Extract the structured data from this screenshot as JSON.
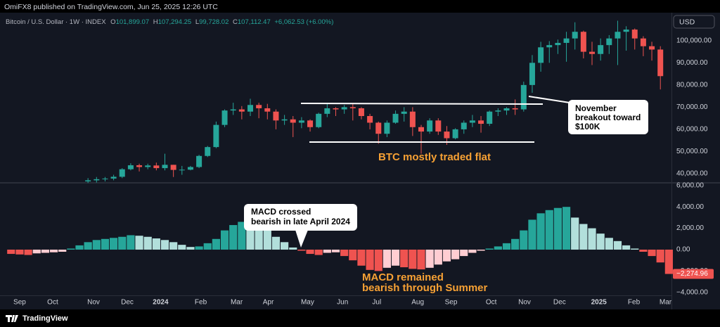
{
  "header": {
    "publisher": "OmiFX8 published on TradingView.com, Jun 25, 2025 12:26 UTC",
    "symbol": "Bitcoin / U.S. Dollar · 1W · INDEX",
    "ohlc": [
      {
        "key": "O",
        "value": "101,899.07"
      },
      {
        "key": "H",
        "value": "107,294.25"
      },
      {
        "key": "L",
        "value": "99,728.02"
      },
      {
        "key": "C",
        "value": "107,112.47"
      }
    ],
    "change": "+6,062.53 (+6.00%)",
    "currency": "USD"
  },
  "footer": "TradingView",
  "chart_data": [
    {
      "type": "candlestick",
      "up_color": "#26a69a",
      "down_color": "#ef5350",
      "xlim": [
        -1.3,
        77.3
      ],
      "ylim": [
        36500,
        112000
      ],
      "grid": false,
      "yticks": [
        {
          "value": 40000,
          "label": "40,000.00"
        },
        {
          "value": 50000,
          "label": "50,000.00"
        },
        {
          "value": 60000,
          "label": "60,000.00"
        },
        {
          "value": 70000,
          "label": "70,000.00"
        },
        {
          "value": 80000,
          "label": "80,000.00"
        },
        {
          "value": 90000,
          "label": "90,000.00"
        },
        {
          "value": 100000,
          "label": "100,000.00"
        }
      ],
      "open": [
        null,
        null,
        null,
        null,
        null,
        null,
        null,
        null,
        null,
        36500,
        37000,
        37500,
        37800,
        38600,
        42000,
        43800,
        43000,
        43700,
        42500,
        44000,
        41700,
        41800,
        43000,
        48000,
        52000,
        62000,
        68500,
        69000,
        68000,
        71000,
        69500,
        68000,
        64000,
        64500,
        63000,
        64000,
        61000,
        67000,
        69500,
        69000,
        70000,
        69500,
        66000,
        63000,
        58000,
        63000,
        67000,
        68000,
        61000,
        59000,
        64000,
        59000,
        56000,
        60000,
        63000,
        64000,
        62500,
        68000,
        68500,
        69500,
        69000,
        80000,
        90000,
        97000,
        98000,
        99000,
        101000,
        104000,
        95000,
        94000,
        98000,
        101000,
        104000,
        105000,
        101000,
        97500,
        96000,
        null
      ],
      "high": [
        null,
        null,
        null,
        null,
        null,
        null,
        null,
        null,
        null,
        38000,
        38500,
        38500,
        39500,
        42500,
        44700,
        44500,
        44500,
        45000,
        49000,
        44000,
        43500,
        43500,
        48500,
        52500,
        63500,
        69000,
        72000,
        70500,
        73800,
        72000,
        71500,
        69000,
        66500,
        66000,
        65500,
        64500,
        67500,
        71900,
        70000,
        71000,
        71500,
        70000,
        67000,
        63500,
        64000,
        68500,
        70000,
        70000,
        62000,
        65000,
        65000,
        61500,
        60500,
        64000,
        66500,
        66000,
        68500,
        69500,
        70000,
        73500,
        81500,
        93500,
        99500,
        99800,
        100500,
        104000,
        108300,
        104500,
        99500,
        101000,
        102500,
        109000,
        106500,
        105500,
        102000,
        99500,
        97500,
        null
      ],
      "low": [
        null,
        null,
        null,
        null,
        null,
        null,
        null,
        null,
        null,
        35800,
        36000,
        36500,
        37000,
        38000,
        41500,
        41000,
        42000,
        41500,
        41500,
        38500,
        39500,
        41500,
        42500,
        47500,
        51500,
        61000,
        66500,
        64500,
        66000,
        65000,
        64500,
        60000,
        62000,
        56500,
        60500,
        59000,
        60500,
        65500,
        66000,
        67000,
        64000,
        64500,
        60000,
        53500,
        56500,
        62500,
        63500,
        57000,
        49000,
        58000,
        57500,
        53000,
        55500,
        58000,
        61000,
        58500,
        61500,
        66000,
        66500,
        66500,
        68000,
        76500,
        86000,
        90000,
        94000,
        90500,
        96000,
        92000,
        89000,
        91000,
        94000,
        89000,
        95500,
        96000,
        93000,
        91000,
        78000,
        null
      ],
      "close": [
        null,
        null,
        null,
        null,
        null,
        null,
        null,
        null,
        null,
        37000,
        37500,
        37800,
        38600,
        42000,
        43800,
        43000,
        43700,
        42500,
        44000,
        41700,
        41800,
        43000,
        48000,
        52000,
        62000,
        68500,
        69000,
        68000,
        71000,
        69500,
        68000,
        64000,
        64500,
        63000,
        64000,
        61000,
        67000,
        69500,
        69000,
        70000,
        69500,
        66000,
        63000,
        58000,
        63000,
        67000,
        68000,
        61000,
        59000,
        64000,
        59000,
        56000,
        60000,
        63000,
        64000,
        62500,
        68000,
        68500,
        69500,
        69000,
        80000,
        90000,
        97000,
        98000,
        99000,
        101000,
        104000,
        95000,
        94000,
        98000,
        101000,
        104000,
        105000,
        101000,
        97500,
        96000,
        84000,
        null
      ]
    },
    {
      "type": "bar",
      "xlim": [
        -1.3,
        77.3
      ],
      "ylim": [
        -4280,
        6120
      ],
      "grid": false,
      "colors": {
        "rising_positive": "#26a69a",
        "falling_positive": "#b2dfdb",
        "falling_negative": "#ef5350",
        "rising_negative": "#ffcdd2"
      },
      "yticks": [
        {
          "value": 6000,
          "label": "6,000.00"
        },
        {
          "value": 4000,
          "label": "4,000.00"
        },
        {
          "value": 2000,
          "label": "2,000.00"
        },
        {
          "value": 0,
          "label": "0.00"
        },
        {
          "value": -2000,
          "label": "−2,000.00"
        },
        {
          "value": -4000,
          "label": "−4,000.00"
        }
      ],
      "last_value": {
        "value": -2274.96,
        "label": "−2,274.96"
      },
      "xticks": [
        {
          "value": 1.0,
          "label": "Sep"
        },
        {
          "value": 4.87,
          "label": "Oct"
        },
        {
          "value": 9.65,
          "label": "Nov"
        },
        {
          "value": 13.6,
          "label": "Dec"
        },
        {
          "value": 17.5,
          "label": "2024"
        },
        {
          "value": 22.2,
          "label": "Feb"
        },
        {
          "value": 26.4,
          "label": "Mar"
        },
        {
          "value": 30.1,
          "label": "Apr"
        },
        {
          "value": 34.7,
          "label": "May"
        },
        {
          "value": 38.8,
          "label": "Jun"
        },
        {
          "value": 42.8,
          "label": "Jul"
        },
        {
          "value": 47.6,
          "label": "Aug"
        },
        {
          "value": 51.5,
          "label": "Sep"
        },
        {
          "value": 56.2,
          "label": "Oct"
        },
        {
          "value": 60.1,
          "label": "Nov"
        },
        {
          "value": 64.2,
          "label": "Dec"
        },
        {
          "value": 68.8,
          "label": "2025"
        },
        {
          "value": 72.9,
          "label": "Feb"
        },
        {
          "value": 76.6,
          "label": "Mar"
        }
      ],
      "values": [
        -400,
        -450,
        -500,
        -350,
        -300,
        -250,
        -200,
        100,
        400,
        700,
        900,
        1000,
        1100,
        1200,
        1350,
        1300,
        1200,
        1050,
        900,
        700,
        450,
        250,
        300,
        600,
        1000,
        1800,
        2300,
        2600,
        2500,
        2200,
        1800,
        1200,
        700,
        200,
        -100,
        -400,
        -500,
        -300,
        -250,
        -600,
        -1000,
        -1500,
        -1900,
        -2000,
        -1700,
        -1500,
        -1650,
        -1800,
        -1850,
        -1700,
        -1400,
        -1100,
        -900,
        -600,
        -300,
        -100,
        100,
        300,
        600,
        1000,
        1800,
        2800,
        3400,
        3700,
        3900,
        4000,
        3000,
        2400,
        2000,
        1500,
        1100,
        800,
        400,
        100,
        -200,
        -600,
        -1200,
        -2274.96
      ]
    }
  ],
  "annotations": {
    "breakout": [
      "November",
      "breakout toward",
      "$100K"
    ],
    "flat": "BTC mostly traded flat",
    "crossed": [
      "MACD crossed",
      "bearish in late April 2024"
    ],
    "remained": [
      "MACD remained",
      "bearish through Summer"
    ]
  }
}
